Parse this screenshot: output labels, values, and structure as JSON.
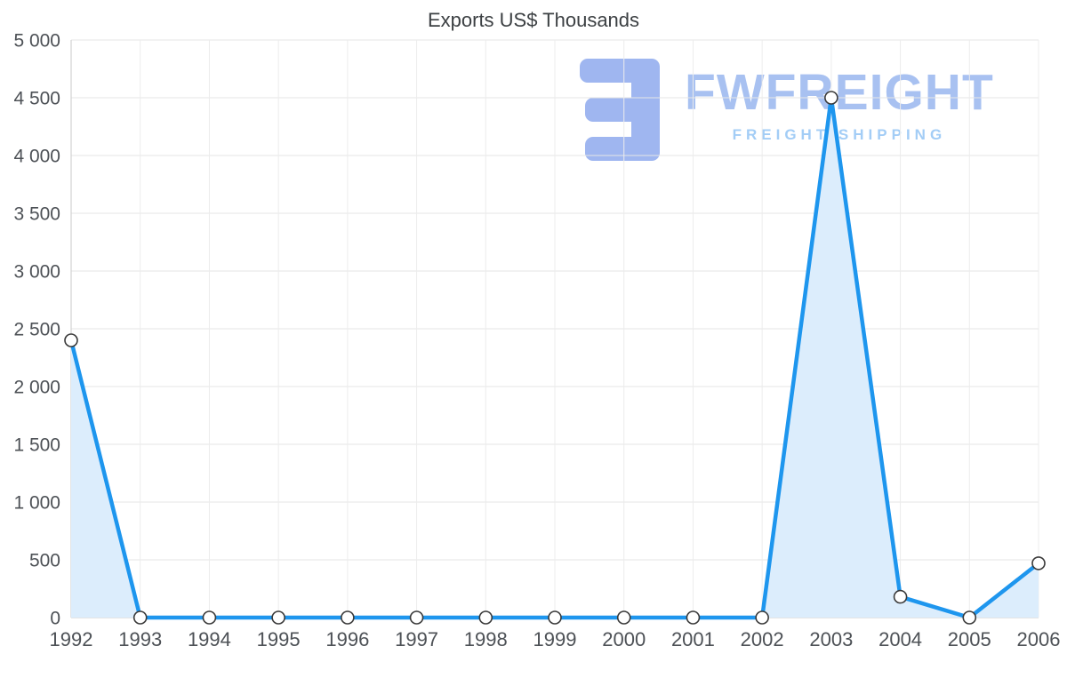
{
  "watermark": {
    "name": "FWFREIGHT",
    "tagline": "FREIGHT SHIPPING",
    "logo_icon": "fwfreight-logo",
    "logo_color": "#9fb6f0",
    "name_color": "#a8c1f1",
    "tagline_color": "#a3cdf6"
  },
  "chart_data": {
    "type": "area",
    "title": "Exports US$ Thousands",
    "categories": [
      "1992",
      "1993",
      "1994",
      "1995",
      "1996",
      "1997",
      "1998",
      "1999",
      "2000",
      "2001",
      "2002",
      "2003",
      "2004",
      "2005",
      "2006"
    ],
    "values": [
      2400,
      0,
      0,
      0,
      0,
      0,
      0,
      0,
      0,
      0,
      0,
      4500,
      180,
      0,
      470
    ],
    "xlabel": "",
    "ylabel": "",
    "ylim": [
      0,
      5000
    ],
    "yticks": [
      0,
      500,
      1000,
      1500,
      2000,
      2500,
      3000,
      3500,
      4000,
      4500,
      5000
    ],
    "ytick_labels": [
      "0",
      "500",
      "1 000",
      "1 500",
      "2 000",
      "2 500",
      "3 000",
      "3 500",
      "4 000",
      "4 500",
      "5 000"
    ],
    "grid": true,
    "legend": "none",
    "line_color": "#1e96ee",
    "area_color": "#dcedfc",
    "marker_fill": "#ffffff",
    "marker_stroke": "#3a3a3a"
  }
}
